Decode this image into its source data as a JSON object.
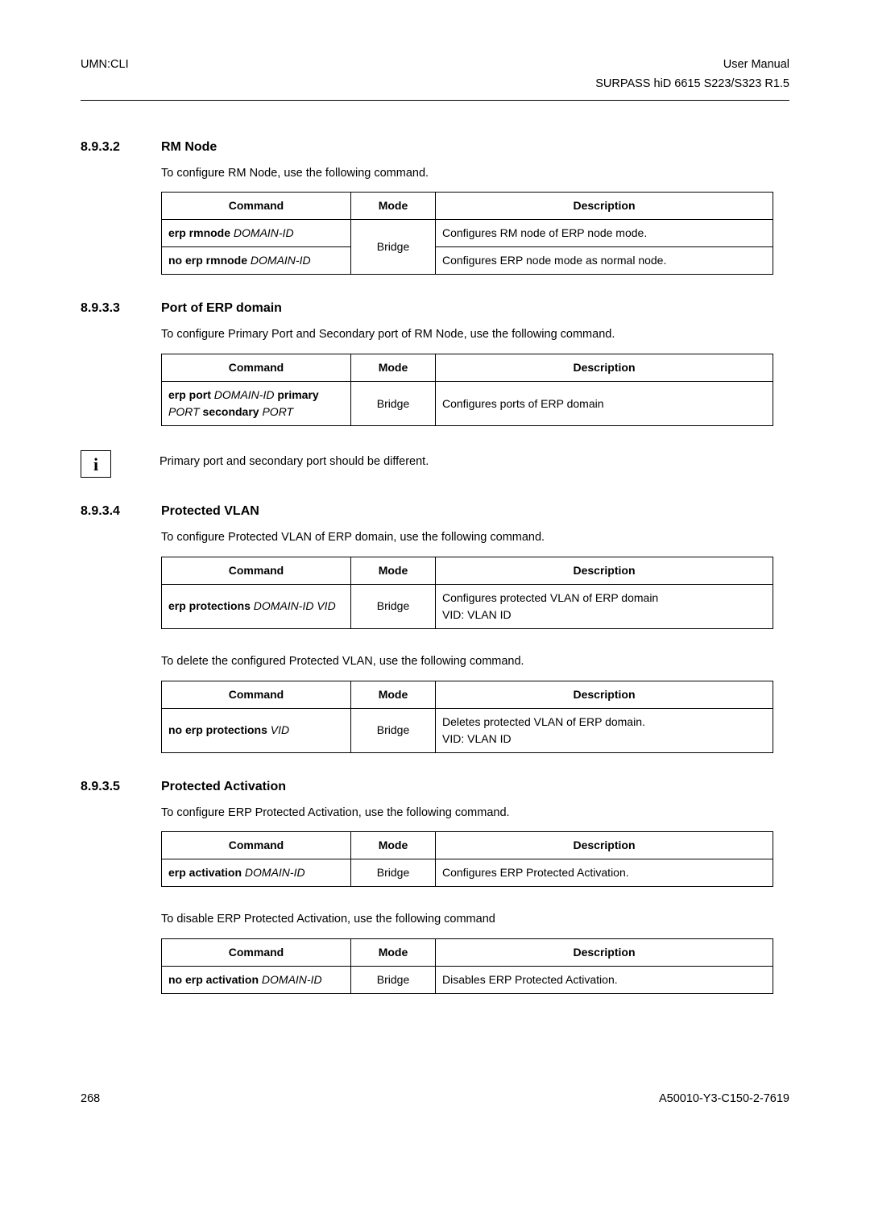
{
  "header": {
    "left": "UMN:CLI",
    "right1": "User Manual",
    "right2": "SURPASS hiD 6615 S223/S323 R1.5"
  },
  "s1": {
    "num": "8.9.3.2",
    "title": "RM Node",
    "intro": "To configure RM Node, use the following command.",
    "th1": "Command",
    "th2": "Mode",
    "th3": "Description",
    "r1_cmd_b": "erp rmnode ",
    "r1_cmd_i": "DOMAIN-ID",
    "r1_desc": "Configures RM node of ERP node mode.",
    "r2_cmd_b": "no erp rmnode ",
    "r2_cmd_i": "DOMAIN-ID",
    "r2_desc": "Configures ERP node mode as normal node.",
    "mode": "Bridge"
  },
  "s2": {
    "num": "8.9.3.3",
    "title": "Port of ERP domain",
    "intro": "To configure Primary Port and Secondary port of RM Node, use the following command.",
    "th1": "Command",
    "th2": "Mode",
    "th3": "Description",
    "r1_a": "erp port ",
    "r1_b": "DOMAIN-ID",
    "r1_c": " primary ",
    "r1_d": "PORT",
    "r1_e": " secondary ",
    "r1_f": "PORT",
    "mode": "Bridge",
    "desc": "Configures ports of ERP domain"
  },
  "info": "Primary port and secondary port should be different.",
  "s3": {
    "num": "8.9.3.4",
    "title": "Protected VLAN",
    "intro": "To configure Protected VLAN of ERP domain, use the following command.",
    "th1": "Command",
    "th2": "Mode",
    "th3": "Description",
    "r1_cmd_b": "erp protections ",
    "r1_cmd_i": "DOMAIN-ID VID",
    "mode": "Bridge",
    "desc1": "Configures protected VLAN of ERP domain",
    "desc2": "VID: VLAN ID",
    "intro2": "To delete the configured Protected VLAN, use the following command.",
    "r2_cmd_b": "no erp protections ",
    "r2_cmd_i": "VID",
    "desc3": "Deletes protected VLAN of ERP domain.",
    "desc4": "VID: VLAN ID"
  },
  "s4": {
    "num": "8.9.3.5",
    "title": "Protected Activation",
    "intro": "To configure ERP Protected Activation, use the following command.",
    "th1": "Command",
    "th2": "Mode",
    "th3": "Description",
    "r1_cmd_b": "erp activation ",
    "r1_cmd_i": "DOMAIN-ID",
    "mode": "Bridge",
    "desc": "Configures ERP Protected Activation.",
    "intro2": "To disable ERP Protected Activation, use the following command",
    "r2_cmd_b": "no erp activation ",
    "r2_cmd_i": "DOMAIN-ID",
    "desc2": "Disables ERP Protected Activation."
  },
  "footer": {
    "page": "268",
    "doc": "A50010-Y3-C150-2-7619"
  }
}
